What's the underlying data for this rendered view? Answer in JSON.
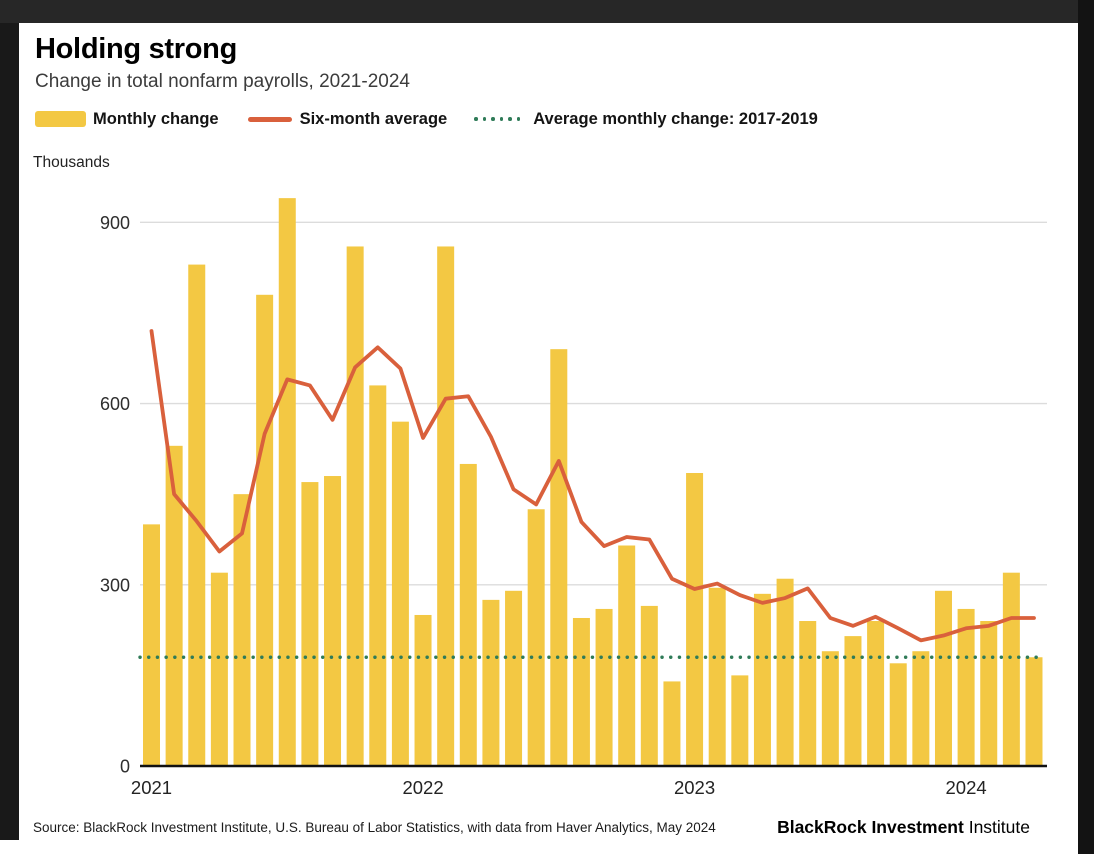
{
  "header": {
    "title": "Holding strong",
    "subtitle": "Change in total nonfarm payrolls, 2021-2024"
  },
  "legend": {
    "bar_label": "Monthly change",
    "line_label": "Six-month average",
    "ref_label": "Average monthly change: 2017-2019"
  },
  "axis": {
    "unit_label": "Thousands",
    "y_ticks": [
      900,
      600,
      300,
      0
    ],
    "x_ticks": [
      "2021",
      "2022",
      "2023",
      "2024"
    ]
  },
  "footer": {
    "source": "Source: BlackRock Investment Institute, U.S. Bureau of Labor Statistics, with data from Haver Analytics, May 2024",
    "brand": {
      "part1": "BlackRock",
      "part2": "Investment",
      "part3": "Institute"
    }
  },
  "colors": {
    "bar": "#F3C843",
    "line": "#D9603C",
    "reference": "#2F7B58",
    "gridline": "#dcdcdc",
    "axis": "#111111",
    "tick_text": "#2e2e2e"
  },
  "chart_data": {
    "type": "bar",
    "title": "Holding strong",
    "subtitle": "Change in total nonfarm payrolls, 2021-2024",
    "ylabel": "Thousands",
    "ylim": [
      0,
      960
    ],
    "grid": "horizontal",
    "legend_position": "top",
    "x": [
      "Jan 2021",
      "Feb 2021",
      "Mar 2021",
      "Apr 2021",
      "May 2021",
      "Jun 2021",
      "Jul 2021",
      "Aug 2021",
      "Sep 2021",
      "Oct 2021",
      "Nov 2021",
      "Dec 2021",
      "Jan 2022",
      "Feb 2022",
      "Mar 2022",
      "Apr 2022",
      "May 2022",
      "Jun 2022",
      "Jul 2022",
      "Aug 2022",
      "Sep 2022",
      "Oct 2022",
      "Nov 2022",
      "Dec 2022",
      "Jan 2023",
      "Feb 2023",
      "Mar 2023",
      "Apr 2023",
      "May 2023",
      "Jun 2023",
      "Jul 2023",
      "Aug 2023",
      "Sep 2023",
      "Oct 2023",
      "Nov 2023",
      "Dec 2023",
      "Jan 2024",
      "Feb 2024",
      "Mar 2024",
      "Apr 2024"
    ],
    "series": [
      {
        "name": "Monthly change",
        "type": "bar",
        "values": [
          400,
          530,
          830,
          320,
          450,
          780,
          940,
          470,
          480,
          860,
          630,
          570,
          250,
          860,
          500,
          275,
          290,
          425,
          690,
          245,
          260,
          365,
          265,
          140,
          485,
          295,
          150,
          285,
          310,
          240,
          190,
          215,
          240,
          170,
          190,
          290,
          260,
          240,
          320,
          180
        ]
      },
      {
        "name": "Six-month average",
        "type": "line",
        "values": [
          720,
          450,
          405,
          355,
          385,
          550,
          640,
          630,
          573,
          660,
          693,
          658,
          543,
          608,
          612,
          545,
          458,
          433,
          505,
          404,
          364,
          379,
          375,
          310,
          293,
          302,
          283,
          270,
          278,
          294,
          245,
          232,
          247,
          228,
          208,
          216,
          228,
          232,
          245,
          245
        ]
      }
    ],
    "reference_line": {
      "name": "Average monthly change: 2017-2019",
      "value": 180
    },
    "x_axis_year_labels": [
      "2021",
      "2022",
      "2023",
      "2024"
    ]
  }
}
